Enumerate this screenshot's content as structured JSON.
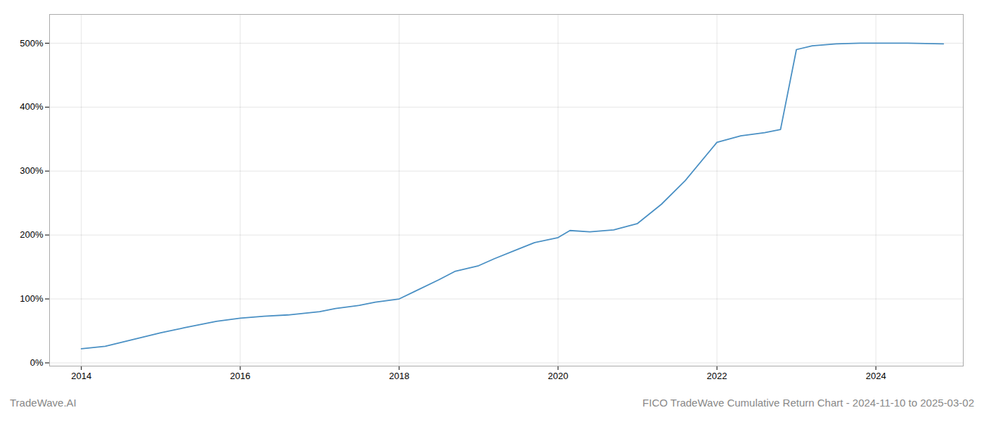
{
  "chart_data": {
    "type": "line",
    "title": "FICO TradeWave Cumulative Return Chart - 2024-11-10 to 2025-03-02",
    "annotations": [
      "TradeWave.AI"
    ],
    "color": "#4a90c4",
    "x": [
      2014.0,
      2014.3,
      2014.6,
      2015.0,
      2015.3,
      2015.7,
      2016.0,
      2016.3,
      2016.6,
      2017.0,
      2017.2,
      2017.5,
      2017.7,
      2018.0,
      2018.2,
      2018.5,
      2018.7,
      2019.0,
      2019.2,
      2019.5,
      2019.7,
      2020.0,
      2020.15,
      2020.4,
      2020.7,
      2021.0,
      2021.3,
      2021.6,
      2022.0,
      2022.3,
      2022.6,
      2022.8,
      2023.0,
      2023.2,
      2023.5,
      2023.8,
      2024.0,
      2024.4,
      2024.85
    ],
    "values": [
      22,
      26,
      35,
      47,
      55,
      65,
      70,
      73,
      75,
      80,
      85,
      90,
      95,
      100,
      112,
      130,
      143,
      152,
      163,
      178,
      188,
      196,
      207,
      205,
      208,
      218,
      248,
      285,
      345,
      355,
      360,
      365,
      490,
      496,
      499,
      500,
      500,
      500,
      499
    ],
    "xlim": [
      2013.6,
      2025.1
    ],
    "ylim": [
      -5,
      545
    ],
    "xticks": [
      2014,
      2016,
      2018,
      2020,
      2022,
      2024
    ],
    "yticks": [
      {
        "value": 0,
        "label": "0%"
      },
      {
        "value": 100,
        "label": "100%"
      },
      {
        "value": 200,
        "label": "200%"
      },
      {
        "value": 300,
        "label": "300%"
      },
      {
        "value": 400,
        "label": "400%"
      },
      {
        "value": 500,
        "label": "500%"
      }
    ],
    "grid": true
  }
}
